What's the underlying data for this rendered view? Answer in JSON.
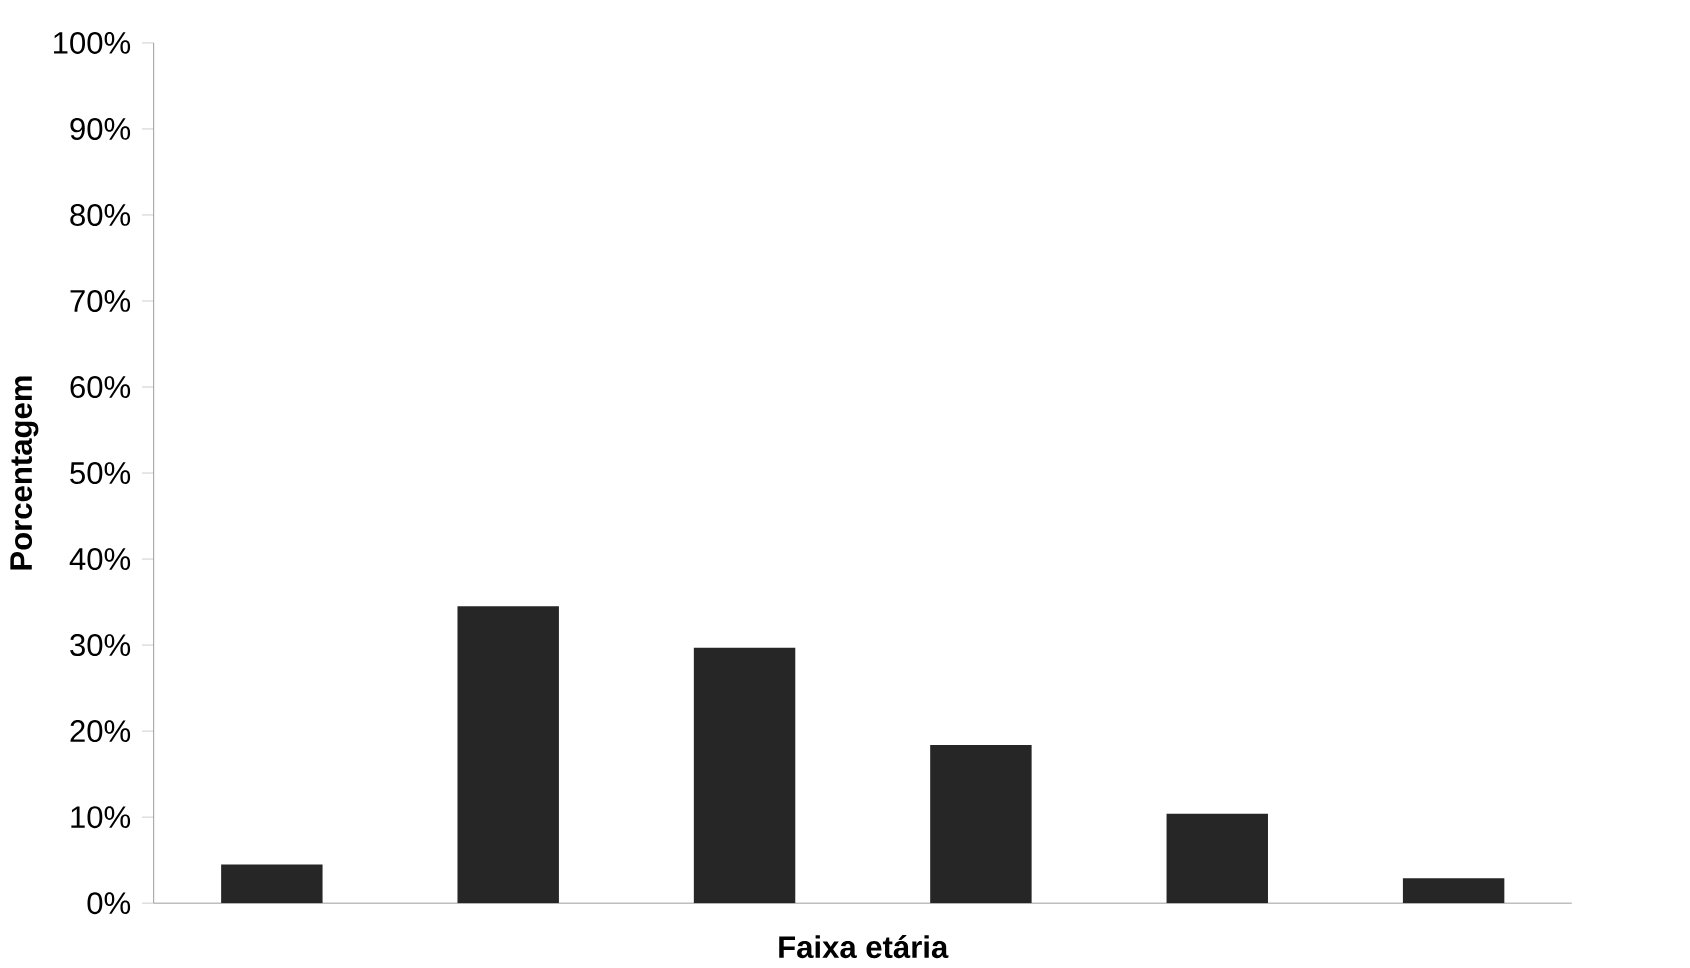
{
  "chart_data": {
    "type": "bar",
    "xlabel": "Faixa etária",
    "ylabel": "Porcentagem",
    "categories": [
      null,
      null,
      null,
      null,
      null,
      null
    ],
    "values": [
      4.5,
      34.5,
      29.7,
      18.4,
      10.4,
      2.9
    ],
    "color": "#262626",
    "ylim": [
      0,
      100
    ],
    "yticks": [
      {
        "value": 0,
        "label": "0%"
      },
      {
        "value": 10,
        "label": "10%"
      },
      {
        "value": 20,
        "label": "20%"
      },
      {
        "value": 30,
        "label": "30%"
      },
      {
        "value": 40,
        "label": "40%"
      },
      {
        "value": 50,
        "label": "50%"
      },
      {
        "value": 60,
        "label": "60%"
      },
      {
        "value": 70,
        "label": "70%"
      },
      {
        "value": 80,
        "label": "80%"
      },
      {
        "value": 90,
        "label": "90%"
      },
      {
        "value": 100,
        "label": "100%"
      }
    ],
    "grid": false
  }
}
